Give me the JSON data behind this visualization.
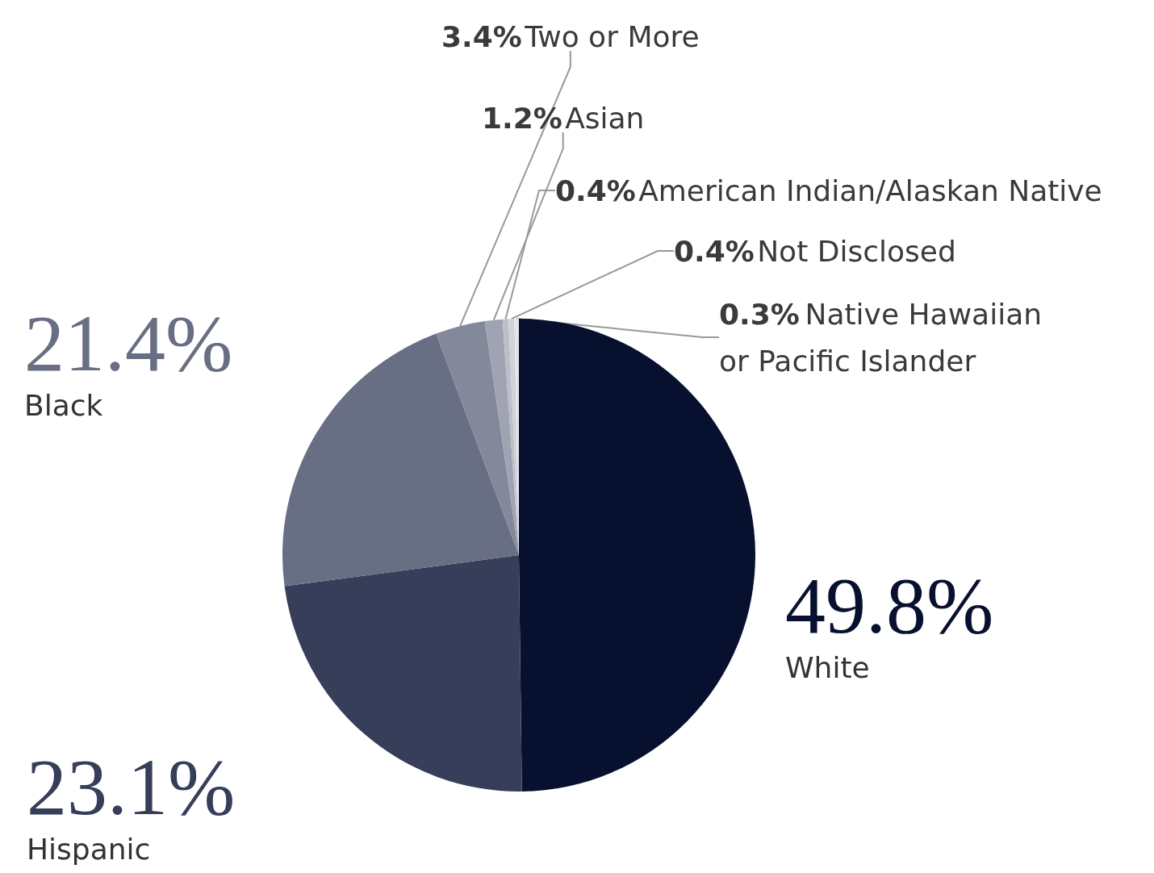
{
  "chart_data": {
    "type": "pie",
    "categories": [
      "White",
      "Hispanic",
      "Black",
      "Two or More",
      "Asian",
      "American Indian/Alaskan Native",
      "Not Disclosed",
      "Native Hawaiian or Pacific Islander"
    ],
    "values": [
      49.8,
      23.1,
      21.4,
      3.4,
      1.2,
      0.4,
      0.4,
      0.3
    ],
    "value_labels": [
      "49.8%",
      "23.1%",
      "21.4%",
      "3.4%",
      "1.2%",
      "0.4%",
      "0.4%",
      "0.3%"
    ],
    "colors": [
      "#07112f",
      "#373e5a",
      "#686e83",
      "#83889a",
      "#a0a4b2",
      "#bcbfc9",
      "#d0d2da",
      "#e4e5ea"
    ]
  }
}
